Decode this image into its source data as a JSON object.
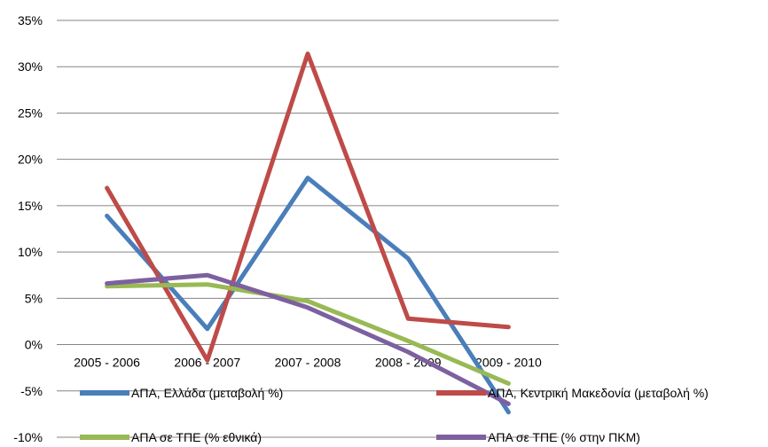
{
  "chart_data": {
    "type": "line",
    "categories": [
      "2005 - 2006",
      "2006 - 2007",
      "2007 - 2008",
      "2008 - 2009",
      "2009 - 2010"
    ],
    "ylim": [
      -10,
      35
    ],
    "yticks": [
      35,
      30,
      25,
      20,
      15,
      10,
      5,
      0,
      -5,
      -10
    ],
    "ytick_labels": [
      "35%",
      "30%",
      "25%",
      "20%",
      "15%",
      "10%",
      "5%",
      "0%",
      "-5%",
      "-10%"
    ],
    "grid": true,
    "legend_position": "bottom",
    "series": [
      {
        "name": "ΑΠΑ, Ελλάδα (μεταβολή %)",
        "color": "#4a7ebb",
        "values": [
          13.9,
          1.7,
          18.0,
          9.3,
          -7.3
        ]
      },
      {
        "name": "ΑΠΑ, Κεντρική Μακεδονία (μεταβολή %)",
        "color": "#be4b48",
        "values": [
          16.9,
          -1.7,
          31.4,
          2.8,
          1.9
        ]
      },
      {
        "name": "ΑΠΑ σε ΤΠΕ (% εθνικά)",
        "color": "#98b954",
        "values": [
          6.3,
          6.5,
          4.7,
          0.4,
          -4.2
        ]
      },
      {
        "name": "ΑΠΑ σε ΤΠΕ (% στην ΠΚΜ)",
        "color": "#7d60a0",
        "values": [
          6.6,
          7.5,
          4.0,
          -0.8,
          -6.4
        ]
      }
    ]
  }
}
